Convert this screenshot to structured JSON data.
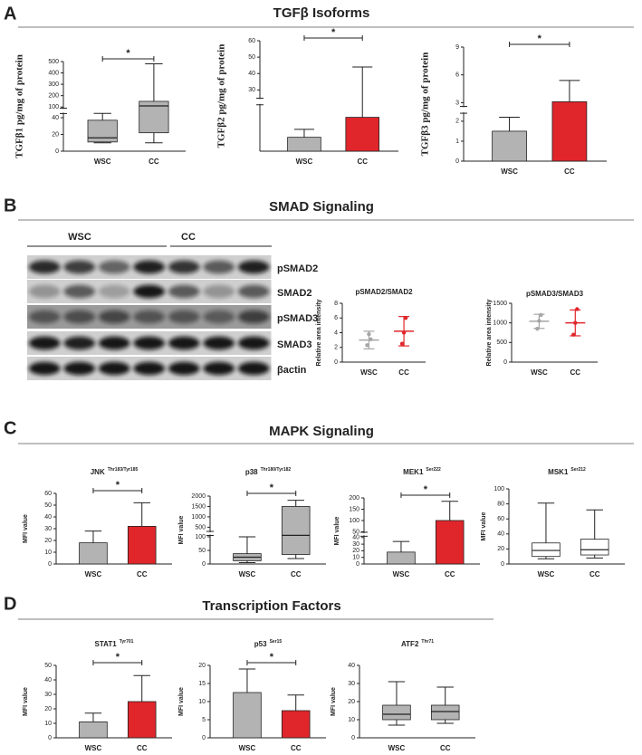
{
  "figure": {
    "panels": [
      {
        "letter": "A",
        "title": "TGFβ Isoforms"
      },
      {
        "letter": "B",
        "title": "SMAD Signaling"
      },
      {
        "letter": "C",
        "title": "MAPK Signaling"
      },
      {
        "letter": "D",
        "title": "Transcription Factors"
      }
    ],
    "blot": {
      "groups": [
        "WSC",
        "CC"
      ],
      "rows": [
        "pSMAD2",
        "SMAD2",
        "pSMAD3",
        "SMAD3",
        "βactin"
      ]
    }
  },
  "chart_data": [
    {
      "type": "box",
      "ylabel": "TGFβ1 pg/mg of protein",
      "categories": [
        "WSC",
        "CC"
      ],
      "ylim": [
        0,
        500
      ],
      "ybreak": [
        45,
        90
      ],
      "yticks": [
        0,
        20,
        40,
        100,
        200,
        300,
        400,
        500
      ],
      "significance": "*",
      "colors": [
        "#b3b3b3",
        "#b3b3b3"
      ],
      "min": [
        10,
        10
      ],
      "q1": [
        11,
        22
      ],
      "median": [
        16,
        110
      ],
      "q3": [
        37,
        150
      ],
      "max": [
        46,
        480
      ]
    },
    {
      "type": "bar",
      "ylabel": "TGFβ2 pg/mg of protein",
      "categories": [
        "WSC",
        "CC"
      ],
      "ylim": [
        0,
        60
      ],
      "ybreak": [
        10,
        25
      ],
      "yticks": [
        30,
        40,
        50,
        60
      ],
      "significance": "*",
      "colors": [
        "#b3b3b3",
        "#e0262b"
      ],
      "values": [
        3,
        7.3
      ],
      "errors": [
        1.7,
        36.7
      ]
    },
    {
      "type": "bar",
      "ylabel": "TGFβ3 pg/mg of protein",
      "categories": [
        "WSC",
        "CC"
      ],
      "ylim": [
        0,
        9
      ],
      "ybreak": [
        2.4,
        2.6
      ],
      "yticks": [
        0,
        1,
        2,
        3,
        6,
        9
      ],
      "significance": "*",
      "colors": [
        "#b3b3b3",
        "#e0262b"
      ],
      "values": [
        1.5,
        3.1
      ],
      "errors": [
        0.7,
        2.3
      ]
    },
    {
      "type": "dot",
      "title": "pSMAD2/SMAD2",
      "ylabel": "Relative area intensity",
      "categories": [
        "WSC",
        "CC"
      ],
      "ylim": [
        0,
        8
      ],
      "yticks": [
        0,
        2,
        4,
        6,
        8
      ],
      "colors": [
        "#a6a6a6",
        "#e0262b"
      ],
      "points": [
        [
          2.3,
          3.8,
          3.1
        ],
        [
          2.5,
          4.0,
          6.0
        ]
      ],
      "means": [
        3,
        4.2
      ],
      "sds": [
        1.2,
        2
      ]
    },
    {
      "type": "dot",
      "title": "pSMAD3/SMAD3",
      "ylabel": "Relative area intensity",
      "categories": [
        "WSC",
        "CC"
      ],
      "ylim": [
        0,
        1500
      ],
      "yticks": [
        0,
        500,
        1000,
        1500
      ],
      "colors": [
        "#a6a6a6",
        "#e0262b"
      ],
      "points": [
        [
          850,
          1050,
          1200
        ],
        [
          700,
          1000,
          1350
        ]
      ],
      "means": [
        1040,
        1000
      ],
      "sds": [
        180,
        330
      ]
    },
    {
      "type": "bar",
      "title": "JNK",
      "title_sup": "Thr183/Tyr185",
      "ylabel": "MFI value",
      "categories": [
        "WSC",
        "CC"
      ],
      "ylim": [
        0,
        60
      ],
      "yticks": [
        0,
        10,
        20,
        30,
        40,
        50,
        60
      ],
      "significance": "*",
      "colors": [
        "#b3b3b3",
        "#e0262b"
      ],
      "values": [
        18,
        32
      ],
      "errors": [
        10,
        20
      ]
    },
    {
      "type": "box",
      "title": "p38",
      "title_sup": "Thr180/Tyr182",
      "ylabel": "MFI value",
      "categories": [
        "WSC",
        "CC"
      ],
      "ylim": [
        0,
        2000
      ],
      "ybreak": [
        105,
        300
      ],
      "yticks": [
        0,
        50,
        100,
        500,
        1000,
        1500,
        2000
      ],
      "significance": "*",
      "colors": [
        "#b3b3b3",
        "#b3b3b3"
      ],
      "min": [
        5,
        20
      ],
      "q1": [
        12,
        35
      ],
      "median": [
        25,
        110
      ],
      "q3": [
        38,
        1500
      ],
      "max": [
        100,
        1800
      ]
    },
    {
      "type": "bar",
      "title": "MEK1",
      "title_sup": "Ser222",
      "ylabel": "MFI value",
      "categories": [
        "WSC",
        "CC"
      ],
      "ylim": [
        0,
        200
      ],
      "ybreak": [
        42,
        48
      ],
      "yticks": [
        0,
        10,
        20,
        30,
        40,
        50,
        100,
        150,
        200
      ],
      "significance": "*",
      "colors": [
        "#b3b3b3",
        "#e0262b"
      ],
      "values": [
        18,
        100
      ],
      "errors": [
        16,
        85
      ]
    },
    {
      "type": "box",
      "title": "MSK1",
      "title_sup": "Ser212",
      "ylabel": "MFI value",
      "categories": [
        "WSC",
        "CC"
      ],
      "ylim": [
        0,
        100
      ],
      "yticks": [
        0,
        20,
        40,
        60,
        80,
        100
      ],
      "colors": [
        "#ffffff",
        "#ffffff"
      ],
      "min": [
        7,
        8
      ],
      "q1": [
        10,
        12
      ],
      "median": [
        18,
        19
      ],
      "q3": [
        28,
        33
      ],
      "max": [
        81,
        72
      ]
    },
    {
      "type": "bar",
      "title": "STAT1",
      "title_sup": "Tyr701",
      "ylabel": "MFI value",
      "categories": [
        "WSC",
        "CC"
      ],
      "ylim": [
        0,
        50
      ],
      "yticks": [
        0,
        10,
        20,
        30,
        40,
        50
      ],
      "significance": "*",
      "colors": [
        "#b3b3b3",
        "#e0262b"
      ],
      "values": [
        11,
        25
      ],
      "errors": [
        6,
        18
      ]
    },
    {
      "type": "bar",
      "title": "p53",
      "title_sup": "Ser15",
      "ylabel": "MFI value",
      "categories": [
        "WSC",
        "CC"
      ],
      "ylim": [
        0,
        20
      ],
      "yticks": [
        0,
        5,
        10,
        15,
        20
      ],
      "significance": "*",
      "colors": [
        "#b3b3b3",
        "#e0262b"
      ],
      "values": [
        12.5,
        7.5
      ],
      "errors": [
        6.5,
        4.3
      ]
    },
    {
      "type": "box",
      "title": "ATF2",
      "title_sup": "Thr71",
      "ylabel": "MFI value",
      "categories": [
        "WSC",
        "CC"
      ],
      "ylim": [
        0,
        40
      ],
      "yticks": [
        0,
        10,
        20,
        30,
        40
      ],
      "colors": [
        "#b3b3b3",
        "#b3b3b3"
      ],
      "min": [
        7,
        8
      ],
      "q1": [
        10,
        10
      ],
      "median": [
        13,
        14.5
      ],
      "q3": [
        18,
        18
      ],
      "max": [
        31,
        28
      ]
    }
  ]
}
